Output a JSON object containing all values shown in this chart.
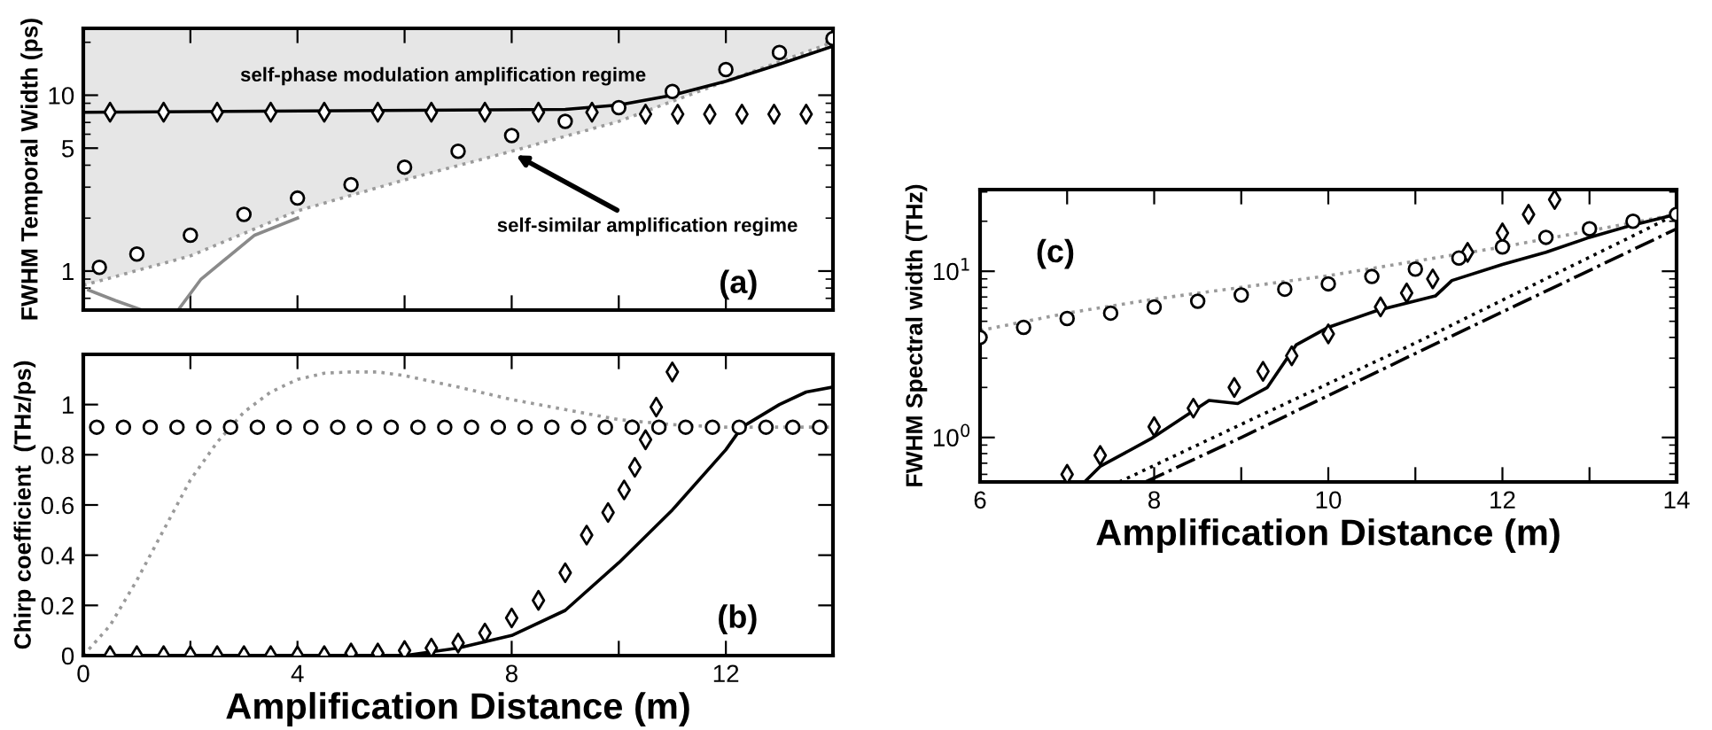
{
  "chart_data": [
    {
      "type": "line",
      "ylabel": "FWHM Temporal Width (ps)",
      "log": "y",
      "xlim": [
        0,
        14
      ],
      "ylim": [
        0.6,
        24
      ],
      "xticks": [
        0,
        {
          "value": 2,
          "label": null
        },
        4,
        {
          "value": 6,
          "label": null
        },
        8,
        {
          "value": 10,
          "label": null
        },
        12
      ],
      "yticks": [
        1,
        5,
        10
      ],
      "tick_labels": "y",
      "annotations": [
        "self-phase modulation amplification regime",
        {
          "text": "self-similar amplification regime",
          "x": 8.0,
          "y": 4.7
        },
        "(a)"
      ],
      "series": [
        {
          "type": "line",
          "color": "#9a9a9a",
          "line_style": "dotted",
          "x": [
            0,
            2,
            4,
            6,
            8,
            10,
            12,
            14
          ],
          "values": [
            0.83,
            1.22,
            2.2,
            3.3,
            4.8,
            7.1,
            12,
            20
          ],
          "lower": [
            0.83,
            1.22,
            2.2,
            3.3,
            4.8,
            7.1,
            12,
            20
          ],
          "upper": [
            24,
            24,
            24,
            24,
            24,
            24,
            24,
            24
          ]
        },
        {
          "type": "line",
          "color": "#8a8a8a",
          "line_style": "solid",
          "x": [
            0.1,
            0.6,
            1.1
          ],
          "values": [
            0.78,
            0.68,
            0.6
          ]
        },
        {
          "type": "line",
          "color": "#8a8a8a",
          "line_style": "solid",
          "x": [
            1.77,
            2.2,
            3.2,
            4
          ],
          "values": [
            0.6,
            0.9,
            1.6,
            2.0
          ]
        },
        {
          "type": "line",
          "color": "#000000",
          "line_style": "solid",
          "x": [
            0,
            9,
            10,
            11,
            12,
            13,
            14
          ],
          "values": [
            8,
            8.3,
            8.8,
            10,
            12,
            15,
            19
          ]
        },
        {
          "type": "scatter",
          "marker": "diamond",
          "color": "#000000",
          "x": [
            0.5,
            1.5,
            2.5,
            3.5,
            4.5,
            5.5,
            6.5,
            7.5,
            8.5,
            9.5,
            10.5,
            11.1,
            11.7,
            12.3,
            12.9,
            13.5
          ],
          "values": [
            8,
            8,
            8,
            8,
            8,
            8,
            8,
            8,
            8,
            8,
            7.8,
            7.8,
            7.8,
            7.8,
            7.8,
            7.8
          ]
        },
        {
          "type": "scatter",
          "marker": "circle",
          "color": "#000000",
          "x": [
            0.3,
            1,
            2,
            3,
            4,
            5,
            6,
            7,
            8,
            9,
            10,
            11,
            12,
            13,
            14
          ],
          "values": [
            1.05,
            1.25,
            1.6,
            2.1,
            2.6,
            3.1,
            3.9,
            4.8,
            5.9,
            7.1,
            8.5,
            10.5,
            14,
            17.5,
            21
          ]
        }
      ]
    },
    {
      "type": "line",
      "xlabel": "Amplification Distance (m)",
      "ylabel": "Chirp coefficient  (THz/ps)",
      "xlim": [
        0,
        14
      ],
      "ylim": [
        0,
        1.2
      ],
      "xticks": [
        0,
        {
          "value": 2,
          "label": null
        },
        4,
        {
          "value": 6,
          "label": null
        },
        8,
        {
          "value": 10,
          "label": null
        },
        12
      ],
      "yticks": [
        0,
        0.2,
        0.4,
        0.6,
        0.8,
        1
      ],
      "annotations": [
        "(b)"
      ],
      "series": [
        {
          "type": "line",
          "color": "#9a9a9a",
          "line_style": "dotted",
          "x": [
            0,
            0.5,
            1,
            1.5,
            2,
            2.5,
            3,
            3.5,
            4,
            4.5,
            5,
            5.5,
            6,
            7,
            8,
            9,
            10,
            11,
            12,
            13,
            14
          ],
          "values": [
            0,
            0.12,
            0.3,
            0.5,
            0.7,
            0.85,
            0.97,
            1.05,
            1.1,
            1.125,
            1.13,
            1.13,
            1.115,
            1.07,
            1.02,
            0.98,
            0.94,
            0.92,
            0.91,
            0.91,
            0.91
          ]
        },
        {
          "type": "line",
          "color": "#000000",
          "line_style": "solid",
          "x": [
            6,
            7,
            8,
            9,
            10,
            11,
            12,
            12.3,
            13,
            13.5,
            14
          ],
          "values": [
            0,
            0.03,
            0.08,
            0.18,
            0.37,
            0.58,
            0.82,
            0.91,
            1.0,
            1.05,
            1.07
          ]
        },
        {
          "type": "scatter",
          "marker": "circle",
          "color": "#000000",
          "x": [
            0.25,
            0.75,
            1.25,
            1.75,
            2.25,
            2.75,
            3.25,
            3.75,
            4.25,
            4.75,
            5.25,
            5.75,
            6.25,
            6.75,
            7.25,
            7.75,
            8.25,
            8.75,
            9.25,
            9.75,
            10.25,
            10.75,
            11.25,
            11.75,
            12.25,
            12.75,
            13.25,
            13.75
          ],
          "values": [
            0.91,
            0.91,
            0.91,
            0.91,
            0.91,
            0.91,
            0.91,
            0.91,
            0.91,
            0.91,
            0.91,
            0.91,
            0.91,
            0.91,
            0.91,
            0.91,
            0.91,
            0.91,
            0.91,
            0.91,
            0.91,
            0.91,
            0.91,
            0.91,
            0.91,
            0.91,
            0.91,
            0.91
          ]
        },
        {
          "type": "scatter",
          "marker": "diamond",
          "color": "#000000",
          "x": [
            0.5,
            1,
            1.5,
            2,
            2.5,
            3,
            3.5,
            4,
            4.5,
            5,
            5.5,
            6,
            6.5,
            7,
            7.5,
            8,
            8.5,
            9,
            9.4,
            9.8,
            10.1,
            10.3,
            10.5,
            10.7,
            11.0
          ],
          "values": [
            0,
            0,
            0,
            0,
            0,
            0,
            0,
            0,
            0,
            0.01,
            0.01,
            0.02,
            0.03,
            0.05,
            0.09,
            0.15,
            0.22,
            0.33,
            0.48,
            0.57,
            0.66,
            0.75,
            0.86,
            0.99,
            1.13
          ]
        }
      ]
    },
    {
      "type": "line",
      "xlabel": "Amplification Distance (m)",
      "ylabel": "FWHM Spectral width (THz)",
      "log": "y",
      "xlim": [
        6,
        14
      ],
      "ylim": [
        0.54,
        31
      ],
      "xticks": [
        6,
        {
          "value": 7,
          "label": null
        },
        8,
        {
          "value": 9,
          "label": null
        },
        10,
        {
          "value": 11,
          "label": null
        },
        12,
        {
          "value": 13,
          "label": null
        },
        14
      ],
      "yticks": [
        {
          "value": 1,
          "label": "10$^{0}$"
        },
        {
          "value": 10,
          "label": "10$^{1}$"
        }
      ],
      "annotations": [
        "(c)"
      ],
      "series": [
        {
          "type": "line",
          "color": "#9a9a9a",
          "line_style": "dotted",
          "x": [
            6,
            7,
            8,
            9,
            10,
            11,
            12,
            13,
            14
          ],
          "values": [
            4.4,
            5.6,
            6.8,
            8.0,
            9.4,
            11.5,
            14,
            17.5,
            22
          ]
        },
        {
          "type": "line",
          "color": "#000000",
          "line_style": "dotted",
          "x": [
            7.6,
            9,
            11,
            14
          ],
          "values": [
            0.54,
            1.2,
            3.7,
            22
          ]
        },
        {
          "type": "line",
          "color": "#000000",
          "line_style": "dashdot",
          "x": [
            7.9,
            9,
            11,
            14
          ],
          "values": [
            0.54,
            1.0,
            3.2,
            18
          ]
        },
        {
          "type": "line",
          "color": "#000000",
          "line_style": "solid",
          "x": [
            7.2,
            7.38,
            7.96,
            8.63,
            8.96,
            9.3,
            9.63,
            10.0,
            10.56,
            11.23,
            11.42,
            12,
            12.5,
            13,
            13.5,
            14
          ],
          "values": [
            0.54,
            0.67,
            0.98,
            1.67,
            1.6,
            2.0,
            3.6,
            4.6,
            5.8,
            7.1,
            8.8,
            11,
            13,
            16,
            19,
            22
          ]
        },
        {
          "type": "scatter",
          "marker": "diamond",
          "color": "#000000",
          "x": [
            7.0,
            7.38,
            8.0,
            8.45,
            8.92,
            9.25,
            9.58,
            10.0,
            10.6,
            10.9,
            11.2,
            11.6,
            12.0,
            12.3,
            12.6
          ],
          "values": [
            0.6,
            0.78,
            1.16,
            1.5,
            2.0,
            2.5,
            3.1,
            4.2,
            6.1,
            7.4,
            9,
            13,
            17,
            22,
            27
          ]
        },
        {
          "type": "scatter",
          "marker": "circle",
          "color": "#000000",
          "x": [
            6,
            6.5,
            7,
            7.5,
            8,
            8.5,
            9,
            9.5,
            10,
            10.5,
            11,
            11.5,
            12,
            12.5,
            13,
            13.5,
            14
          ],
          "values": [
            4.0,
            4.6,
            5.2,
            5.6,
            6.1,
            6.6,
            7.2,
            7.8,
            8.4,
            9.3,
            10.3,
            12,
            14,
            16,
            18,
            20,
            22
          ]
        }
      ]
    }
  ]
}
